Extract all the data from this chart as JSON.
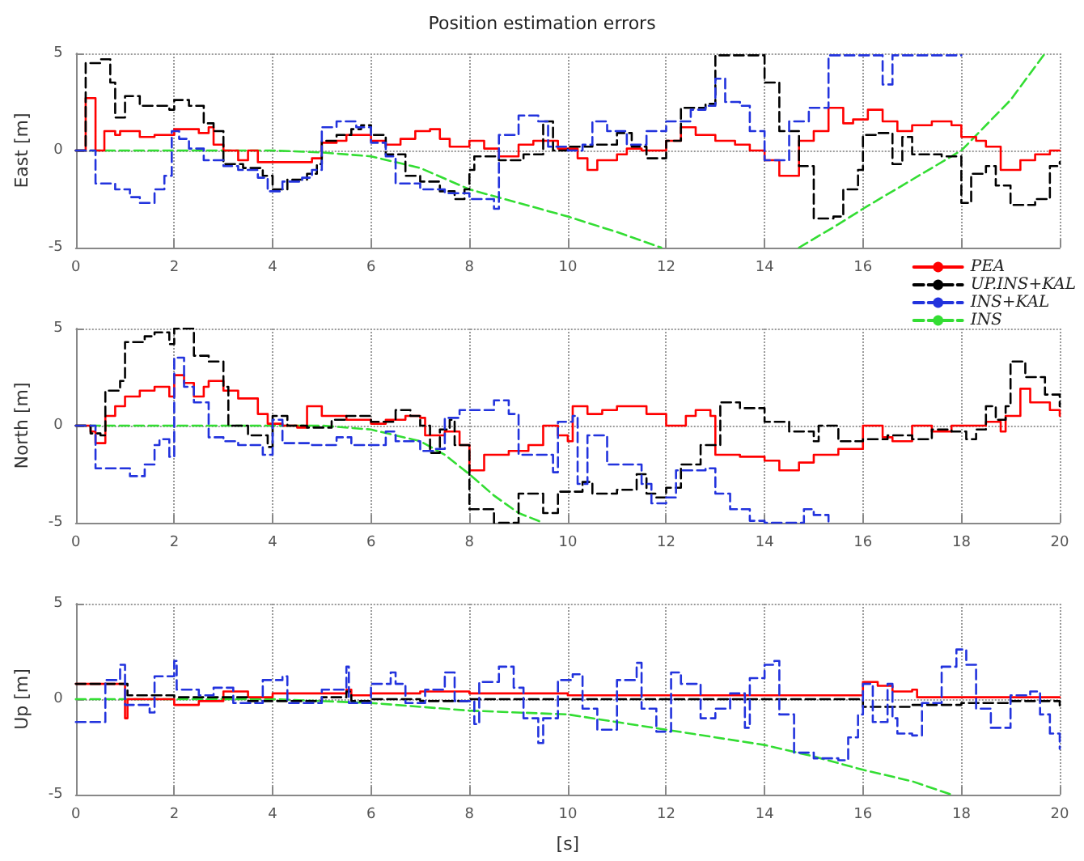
{
  "chart_data": [
    {
      "type": "step",
      "title": "Position estimation errors",
      "ylabel": "East [m]",
      "xlim": [
        0,
        20
      ],
      "ylim": [
        -5,
        5
      ],
      "yticks": [
        -5,
        0,
        5
      ],
      "xticks": [
        0,
        2,
        4,
        6,
        8,
        10,
        12,
        14,
        16,
        {
          "value": 18,
          "label": null
        },
        {
          "value": 20,
          "label": null
        }
      ],
      "grid": true,
      "legend": "bottom right",
      "series": [
        {
          "name": "PEA",
          "color": "#ff0000",
          "line_style": "solid",
          "x": [
            0,
            0.2,
            0.4,
            0.58,
            0.8,
            0.9,
            1.3,
            1.6,
            2,
            2.5,
            2.7,
            2.8,
            3,
            3.3,
            3.5,
            3.7,
            4.8,
            5,
            5.3,
            5.5,
            6,
            6.3,
            6.6,
            6.9,
            7.2,
            7.4,
            7.6,
            8,
            8.3,
            8.6,
            9,
            9.3,
            9.8,
            10.2,
            10.4,
            10.6,
            11,
            11.2,
            11.5,
            12,
            12.3,
            12.6,
            13,
            13.4,
            13.7,
            14,
            14.3,
            14.7,
            15,
            15.3,
            15.6,
            15.8,
            16.1,
            16.4,
            16.7,
            17,
            17.4,
            17.8,
            18,
            18.3,
            18.5,
            18.8,
            19.2,
            19.5,
            19.8,
            20
          ],
          "values": [
            0,
            2.7,
            0,
            1,
            0.8,
            1,
            0.7,
            0.8,
            1.1,
            0.9,
            1.2,
            0.3,
            0,
            -0.5,
            0,
            -0.6,
            -0.4,
            0.4,
            0.5,
            0.8,
            0.5,
            0.3,
            0.6,
            1,
            1.1,
            0.6,
            0.2,
            0.5,
            0.1,
            -0.3,
            0.3,
            0.5,
            0.1,
            -0.4,
            -1,
            -0.5,
            -0.2,
            0.1,
            0,
            0.5,
            1.2,
            0.8,
            0.5,
            0.3,
            0,
            -0.5,
            -1.3,
            0.5,
            1,
            2.2,
            1.4,
            1.6,
            2.1,
            1.5,
            1,
            1.3,
            1.5,
            1.3,
            0.7,
            0.5,
            0.2,
            -1,
            -0.5,
            -0.2,
            0,
            0
          ]
        },
        {
          "name": "UP.INS+KAL",
          "color": "#000000",
          "line_style": "dashed",
          "x": [
            0,
            0.2,
            0.5,
            0.7,
            0.8,
            1,
            1.3,
            1.9,
            2,
            2.3,
            2.6,
            2.8,
            3,
            3.4,
            3.8,
            4,
            4.3,
            4.7,
            4.9,
            5,
            5.3,
            5.6,
            5.8,
            6,
            6.3,
            6.7,
            7,
            7.4,
            7.7,
            7.9,
            8,
            8.1,
            8.6,
            9.1,
            9.5,
            9.7,
            10,
            10.5,
            11,
            11.3,
            11.6,
            12,
            12.3,
            12.8,
            13,
            13.5,
            14,
            14.3,
            14.7,
            15,
            15.4,
            15.6,
            15.9,
            16,
            16.3,
            16.6,
            16.8,
            17,
            17.6,
            18,
            18.2,
            18.5,
            18.7,
            19,
            19.5,
            19.8,
            20
          ],
          "values": [
            0,
            4.5,
            4.7,
            3.5,
            1.7,
            2.8,
            2.3,
            2.1,
            2.6,
            2.3,
            1.4,
            1,
            -0.7,
            -0.9,
            -1.3,
            -2,
            -1.5,
            -1.2,
            -0.7,
            0.5,
            0.8,
            1.1,
            1.3,
            0.8,
            -0.2,
            -1.3,
            -1.6,
            -2.1,
            -2.5,
            -2,
            -1,
            -0.3,
            -0.5,
            -0.2,
            1.5,
            0,
            0.2,
            0.3,
            0.9,
            0.2,
            -0.4,
            0.5,
            2.2,
            2.4,
            4.9,
            4.9,
            3.5,
            1,
            -0.8,
            -3.5,
            -3.4,
            -2,
            -1,
            0.8,
            0.9,
            -0.7,
            0.7,
            -0.2,
            -0.3,
            -2.7,
            -1.2,
            -0.8,
            -1.8,
            -2.8,
            -2.5,
            -0.8,
            -0.6
          ]
        },
        {
          "name": "INS+KAL",
          "color": "#2233dd",
          "line_style": "dashed",
          "x": [
            0,
            0.4,
            0.8,
            1.1,
            1.3,
            1.6,
            1.8,
            1.95,
            2.1,
            2.3,
            2.6,
            3,
            3.3,
            3.7,
            3.9,
            4.2,
            4.6,
            4.8,
            5,
            5.3,
            5.7,
            6,
            6.3,
            6.5,
            7,
            7.5,
            8,
            8.5,
            8.6,
            9,
            9.4,
            9.6,
            10,
            10.3,
            10.5,
            10.8,
            11.2,
            11.6,
            12,
            12.5,
            12.8,
            13,
            13.2,
            13.5,
            13.7,
            14,
            14.5,
            14.9,
            15.3,
            16.4,
            16.6,
            18
          ],
          "values": [
            0,
            -1.7,
            -2,
            -2.4,
            -2.7,
            -2,
            -1.3,
            1,
            0.6,
            0.1,
            -0.5,
            -0.8,
            -1,
            -1.4,
            -2.1,
            -1.6,
            -1.4,
            -1,
            1.2,
            1.5,
            1.2,
            0.4,
            -0.3,
            -1.7,
            -2,
            -2.2,
            -2.5,
            -3,
            0.8,
            1.8,
            1.5,
            0.2,
            0,
            0.3,
            1.5,
            1,
            0.3,
            1,
            1.5,
            2.1,
            2.3,
            3.7,
            2.5,
            2.3,
            1,
            -0.5,
            1.5,
            2.2,
            4.9,
            3.4,
            4.9,
            4.9
          ]
        },
        {
          "name": "INS",
          "type": "line",
          "color": "#33dd33",
          "line_style": "dashed",
          "x": [
            0,
            1,
            2,
            3,
            4,
            5,
            6,
            7,
            8,
            9,
            10,
            11,
            11.9,
            13,
            14.7,
            15.5,
            16,
            17,
            18,
            19,
            19.7
          ],
          "values": [
            0,
            0,
            0,
            0,
            0,
            -0.1,
            -0.3,
            -0.9,
            -2,
            -2.7,
            -3.4,
            -4.2,
            -5,
            null,
            -5,
            -3.8,
            -3,
            -1.5,
            0,
            2.6,
            5
          ]
        }
      ]
    },
    {
      "type": "step",
      "ylabel": "North [m]",
      "xlim": [
        0,
        20
      ],
      "ylim": [
        -5,
        5
      ],
      "yticks": [
        -5,
        0,
        5
      ],
      "xticks": [
        0,
        2,
        4,
        6,
        8,
        10,
        12,
        14,
        16,
        18,
        20
      ],
      "grid": true,
      "series": [
        {
          "color": "#ff0000",
          "line_style": "solid",
          "x": [
            0,
            0.3,
            0.4,
            0.6,
            0.8,
            1,
            1.3,
            1.6,
            1.9,
            2,
            2.2,
            2.4,
            2.6,
            2.7,
            3,
            3.3,
            3.7,
            3.9,
            4.2,
            4.5,
            4.7,
            5,
            5.5,
            6,
            6.3,
            6.7,
            7,
            7.1,
            7.5,
            7.8,
            8,
            8.3,
            8.8,
            9.2,
            9.5,
            9.8,
            10,
            10.1,
            10.4,
            10.7,
            11,
            11.6,
            12,
            12.4,
            12.6,
            12.9,
            13,
            13.5,
            14,
            14.3,
            14.7,
            15,
            15.5,
            16,
            16.4,
            16.6,
            17,
            17.4,
            17.8,
            18.5,
            18.8,
            18.9,
            19.2,
            19.4,
            19.8,
            20
          ],
          "values": [
            0,
            -0.3,
            -0.9,
            0.5,
            1,
            1.5,
            1.8,
            2,
            1.5,
            2.6,
            2.2,
            1.5,
            2,
            2.3,
            1.8,
            1.4,
            0.6,
            0.1,
            0,
            -0.1,
            1,
            0.5,
            0.3,
            0.1,
            0.3,
            0.5,
            0.4,
            -0.5,
            -0.3,
            -1,
            -2.3,
            -1.5,
            -1.3,
            -1,
            0,
            -0.5,
            -0.8,
            1,
            0.6,
            0.8,
            1,
            0.6,
            0,
            0.5,
            0.8,
            0.5,
            -1.5,
            -1.6,
            -1.8,
            -2.3,
            -1.9,
            -1.5,
            -1.2,
            0,
            -0.6,
            -0.8,
            0,
            -0.3,
            0,
            0.2,
            -0.3,
            0.5,
            1.9,
            1.2,
            0.8,
            0.5
          ]
        },
        {
          "color": "#000000",
          "line_style": "dashed",
          "x": [
            0,
            0.3,
            0.5,
            0.6,
            0.9,
            1,
            1.4,
            1.6,
            1.9,
            2,
            2.4,
            2.7,
            3,
            3.1,
            3.5,
            3.9,
            4,
            4.3,
            4.7,
            5.2,
            5.5,
            6,
            6.5,
            6.8,
            7,
            7.2,
            7.4,
            7.6,
            7.7,
            8,
            8.5,
            9,
            9.5,
            9.8,
            10.3,
            10.5,
            11,
            11.4,
            11.6,
            11.8,
            12,
            12.3,
            12.7,
            13.1,
            13.5,
            14,
            14.5,
            15,
            15.1,
            15.5,
            16,
            16.5,
            17,
            17.4,
            17.8,
            18.1,
            18.3,
            18.5,
            18.7,
            18.9,
            19,
            19.3,
            19.7,
            20
          ],
          "values": [
            0,
            -0.4,
            -0.5,
            1.8,
            2.3,
            4.3,
            4.6,
            4.8,
            4.2,
            5,
            3.6,
            3.3,
            2,
            0,
            -0.5,
            -1.1,
            0.5,
            0,
            -0.1,
            0.3,
            0.5,
            0.2,
            0.8,
            0.5,
            0,
            -1.4,
            -0.2,
            0.3,
            -1,
            -4.3,
            -5,
            -3.5,
            -4.5,
            -3.4,
            -2.9,
            -3.5,
            -3.3,
            -2.5,
            -3.5,
            -3.7,
            -3.2,
            -2,
            -1,
            1.2,
            0.9,
            0.2,
            -0.3,
            -0.8,
            0,
            -0.8,
            -0.7,
            -0.5,
            -0.7,
            -0.2,
            -0.3,
            -0.7,
            -0.2,
            1,
            0.3,
            1,
            3.3,
            2.5,
            1.6,
            1
          ]
        },
        {
          "color": "#2233dd",
          "line_style": "dashed",
          "x": [
            0,
            0.4,
            1.1,
            1.4,
            1.6,
            1.7,
            1.9,
            2,
            2.2,
            2.4,
            2.7,
            3,
            3.3,
            3.8,
            4,
            4.2,
            4.8,
            5.3,
            5.6,
            6.3,
            6.5,
            7,
            7.3,
            7.5,
            7.8,
            8.5,
            8.8,
            9,
            9.7,
            9.8,
            10.1,
            10.2,
            10.4,
            10.8,
            11.3,
            11.5,
            11.7,
            12,
            12.2,
            12.8,
            13,
            13.3,
            13.7,
            14,
            14.8,
            15,
            15.3
          ],
          "values": [
            0,
            -2.2,
            -2.6,
            -2,
            -1,
            -0.7,
            -1.6,
            3.5,
            2,
            1.2,
            -0.6,
            -0.8,
            -1,
            -1.5,
            0.3,
            -0.9,
            -1,
            -0.6,
            -1,
            -0.3,
            -0.8,
            -1.3,
            -1.2,
            0.4,
            0.8,
            1.3,
            0.6,
            -1.5,
            -2.4,
            0.2,
            0.5,
            -3,
            -0.5,
            -2,
            -2,
            -3,
            -4,
            -3.7,
            -2.3,
            -2.2,
            -3.5,
            -4.3,
            -4.9,
            -5,
            -4.3,
            -4.6,
            -5
          ]
        },
        {
          "type": "line",
          "color": "#33dd33",
          "line_style": "dashed",
          "x": [
            0,
            1,
            2,
            3,
            4,
            5,
            6,
            7,
            7.5,
            8,
            8.5,
            9,
            9.5
          ],
          "values": [
            0,
            0,
            0,
            0,
            0,
            0,
            -0.2,
            -0.8,
            -1.5,
            -2.5,
            -3.6,
            -4.5,
            -5
          ]
        }
      ]
    },
    {
      "type": "step",
      "ylabel": "Up [m]",
      "xlabel": "[s]",
      "xlim": [
        0,
        20
      ],
      "ylim": [
        -5,
        5
      ],
      "yticks": [
        -5,
        0,
        5
      ],
      "xticks": [
        0,
        2,
        4,
        6,
        8,
        10,
        12,
        14,
        16,
        18,
        20
      ],
      "grid": true,
      "series": [
        {
          "color": "#ff0000",
          "line_style": "solid",
          "x": [
            0,
            1,
            1.05,
            2,
            2.5,
            3,
            3.5,
            4,
            5.5,
            5.6,
            6,
            7,
            8,
            10,
            15.9,
            16,
            16.3,
            16.6,
            17,
            17.1,
            20
          ],
          "values": [
            0.8,
            -1,
            0,
            -0.3,
            -0.1,
            0.4,
            0.1,
            0.3,
            0.5,
            0.2,
            0.3,
            0.4,
            0.3,
            0.2,
            0.2,
            0.9,
            0.7,
            0.4,
            0.5,
            0.1,
            0.1
          ]
        },
        {
          "color": "#000000",
          "line_style": "dashed",
          "x": [
            0,
            1.05,
            2,
            3,
            3.5,
            5,
            5.5,
            5.6,
            6,
            7,
            8,
            15.8,
            16,
            17,
            18,
            19,
            20
          ],
          "values": [
            0.8,
            0.2,
            0.1,
            0.1,
            -0.1,
            0.1,
            0.4,
            -0.1,
            0,
            -0.1,
            0,
            0,
            -0.4,
            -0.3,
            -0.2,
            -0.1,
            -0.4
          ]
        },
        {
          "color": "#2233dd",
          "line_style": "dashed",
          "x": [
            0,
            0.6,
            0.9,
            1,
            1.5,
            1.6,
            2,
            2.05,
            2.5,
            2.8,
            3.2,
            3.8,
            4.2,
            4.3,
            5,
            5.5,
            5.55,
            6,
            6.4,
            6.5,
            6.7,
            7.1,
            7.5,
            7.7,
            8.1,
            8.2,
            8.6,
            8.9,
            9.1,
            9.4,
            9.5,
            9.8,
            10.1,
            10.3,
            10.6,
            11,
            11.4,
            11.5,
            11.8,
            12.1,
            12.3,
            12.7,
            13,
            13.3,
            13.6,
            13.7,
            14,
            14.2,
            14.3,
            14.6,
            15,
            15.5,
            15.7,
            15.9,
            16,
            16.2,
            16.5,
            16.6,
            16.7,
            17,
            17.2,
            17.6,
            17.9,
            18.1,
            18.3,
            18.6,
            19,
            19.4,
            19.6,
            19.8,
            20
          ],
          "values": [
            -1.2,
            1,
            1.8,
            -0.3,
            -0.7,
            1.2,
            2,
            0.5,
            0.2,
            0.6,
            -0.2,
            1,
            1.2,
            -0.2,
            0.5,
            1.7,
            -0.2,
            0.8,
            1.4,
            0.8,
            -0.2,
            0.5,
            1.4,
            -0.1,
            -1.3,
            0.9,
            1.7,
            0.6,
            -1,
            -2.3,
            -1,
            1,
            1.3,
            -0.5,
            -1.6,
            1,
            1.9,
            -0.5,
            -1.7,
            1.4,
            0.8,
            -1,
            -0.5,
            0.3,
            -1.5,
            1.1,
            1.8,
            2,
            -0.8,
            -2.8,
            -3.1,
            -3.2,
            -2,
            -0.8,
            0.8,
            -1.2,
            0.8,
            -1,
            -1.8,
            -1.9,
            -0.2,
            1.7,
            2.6,
            1.8,
            -0.5,
            -1.5,
            0.2,
            0.4,
            -0.8,
            -1.8,
            -2.6
          ]
        },
        {
          "type": "line",
          "color": "#33dd33",
          "line_style": "dashed",
          "x": [
            0,
            2,
            4,
            6,
            7,
            8,
            10,
            11,
            12,
            13,
            14,
            15,
            16,
            17,
            17.8
          ],
          "values": [
            0,
            0,
            0,
            -0.2,
            -0.4,
            -0.6,
            -0.8,
            -1.2,
            -1.6,
            -2,
            -2.4,
            -3,
            -3.7,
            -4.3,
            -5
          ]
        }
      ]
    }
  ]
}
